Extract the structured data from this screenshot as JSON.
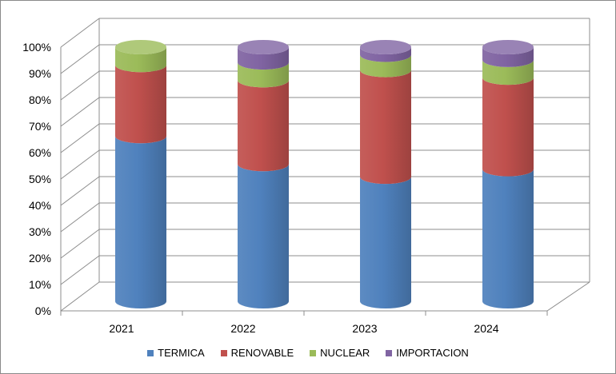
{
  "chart_data": {
    "type": "bar",
    "stacked": true,
    "style": "3d-cylinder",
    "categories": [
      "2021",
      "2022",
      "2023",
      "2024"
    ],
    "series": [
      {
        "name": "TERMICA",
        "color": "#4F81BD",
        "values": [
          65,
          54,
          49,
          52
        ]
      },
      {
        "name": "RENOVABLE",
        "color": "#C0504D",
        "values": [
          28,
          33,
          42,
          36
        ]
      },
      {
        "name": "NUCLEAR",
        "color": "#9BBB59",
        "values": [
          7,
          7,
          6,
          7
        ]
      },
      {
        "name": "IMPORTACION",
        "color": "#8064A2",
        "values": [
          0,
          6,
          3,
          5
        ]
      }
    ],
    "yticks": [
      "0%",
      "10%",
      "20%",
      "30%",
      "40%",
      "50%",
      "60%",
      "70%",
      "80%",
      "90%",
      "100%"
    ],
    "ylim": [
      0,
      100
    ],
    "title": "",
    "xlabel": "",
    "ylabel": "",
    "legend_position": "bottom"
  }
}
